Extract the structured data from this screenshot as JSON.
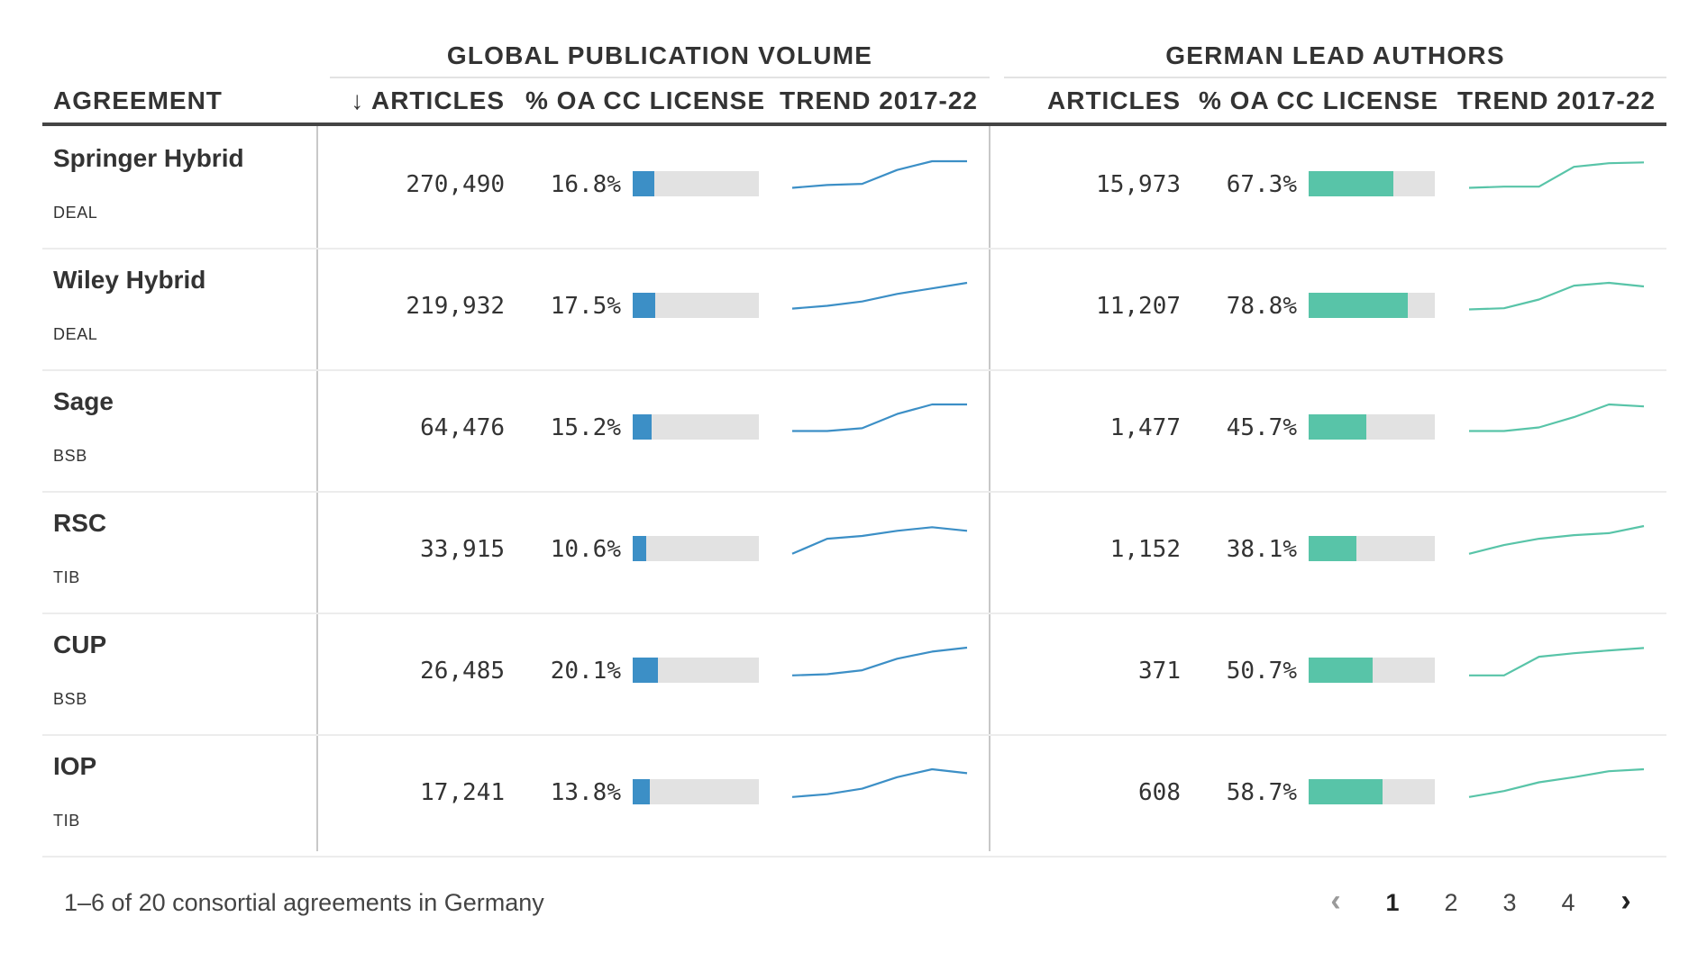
{
  "header": {
    "group_global": "GLOBAL PUBLICATION VOLUME",
    "group_german": "GERMAN LEAD AUTHORS",
    "col_agreement": "AGREEMENT",
    "col_articles_sorted": "↓ ARTICLES",
    "col_articles": "ARTICLES",
    "col_oa": "% OA CC LICENSE",
    "col_trend": "TREND 2017-22"
  },
  "colors": {
    "global_accent": "#3c8fc6",
    "german_accent": "#58c4a8",
    "bar_background": "#e2e2e2"
  },
  "chart_data": {
    "type": "table",
    "title": "",
    "columns": [
      "AGREEMENT",
      "↓ ARTICLES",
      "% OA CC LICENSE",
      "TREND 2017-22",
      "ARTICLES",
      "% OA CC LICENSE",
      "TREND 2017-22"
    ],
    "trend_years": [
      2017,
      2018,
      2019,
      2020,
      2021,
      2022
    ],
    "rows": [
      {
        "name": "Springer Hybrid",
        "consortium": "DEAL",
        "global": {
          "articles": "270,490",
          "oa_pct": 16.8,
          "oa_label": "16.8%",
          "trend": [
            0.33,
            0.4,
            0.43,
            0.78,
            1.0,
            1.0
          ]
        },
        "german": {
          "articles": "15,973",
          "oa_pct": 67.3,
          "oa_label": "67.3%",
          "trend": [
            0.33,
            0.36,
            0.36,
            0.86,
            0.95,
            0.97
          ]
        }
      },
      {
        "name": "Wiley Hybrid",
        "consortium": "DEAL",
        "global": {
          "articles": "219,932",
          "oa_pct": 17.5,
          "oa_label": "17.5%",
          "trend": [
            0.35,
            0.42,
            0.53,
            0.72,
            0.86,
            1.0
          ]
        },
        "german": {
          "articles": "11,207",
          "oa_pct": 78.8,
          "oa_label": "78.8%",
          "trend": [
            0.33,
            0.36,
            0.58,
            0.93,
            1.0,
            0.91
          ]
        }
      },
      {
        "name": "Sage",
        "consortium": "BSB",
        "global": {
          "articles": "64,476",
          "oa_pct": 15.2,
          "oa_label": "15.2%",
          "trend": [
            0.33,
            0.33,
            0.4,
            0.76,
            1.0,
            1.0
          ]
        },
        "german": {
          "articles": "1,477",
          "oa_pct": 45.7,
          "oa_label": "45.7%",
          "trend": [
            0.33,
            0.33,
            0.42,
            0.68,
            1.0,
            0.95
          ]
        }
      },
      {
        "name": "RSC",
        "consortium": "TIB",
        "global": {
          "articles": "33,915",
          "oa_pct": 10.6,
          "oa_label": "10.6%",
          "trend": [
            0.3,
            0.68,
            0.75,
            0.88,
            0.97,
            0.88
          ]
        },
        "german": {
          "articles": "1,152",
          "oa_pct": 38.1,
          "oa_label": "38.1%",
          "trend": [
            0.3,
            0.52,
            0.68,
            0.77,
            0.82,
            1.0
          ]
        }
      },
      {
        "name": "CUP",
        "consortium": "BSB",
        "global": {
          "articles": "26,485",
          "oa_pct": 20.1,
          "oa_label": "20.1%",
          "trend": [
            0.3,
            0.33,
            0.43,
            0.72,
            0.9,
            1.0
          ]
        },
        "german": {
          "articles": "371",
          "oa_pct": 50.7,
          "oa_label": "50.7%",
          "trend": [
            0.3,
            0.3,
            0.77,
            0.86,
            0.93,
            0.99
          ]
        }
      },
      {
        "name": "IOP",
        "consortium": "TIB",
        "global": {
          "articles": "17,241",
          "oa_pct": 13.8,
          "oa_label": "13.8%",
          "trend": [
            0.3,
            0.37,
            0.51,
            0.8,
            1.0,
            0.9
          ]
        },
        "german": {
          "articles": "608",
          "oa_pct": 58.7,
          "oa_label": "58.7%",
          "trend": [
            0.3,
            0.45,
            0.67,
            0.8,
            0.95,
            1.0
          ]
        }
      }
    ]
  },
  "footer": {
    "summary": "1–6 of 20 consortial agreements in Germany",
    "prev_icon": "chevron-left-icon",
    "prev_glyph": "‹",
    "next_icon": "chevron-right-icon",
    "next_glyph": "›",
    "pages": [
      "1",
      "2",
      "3",
      "4"
    ],
    "current_page": "1"
  }
}
